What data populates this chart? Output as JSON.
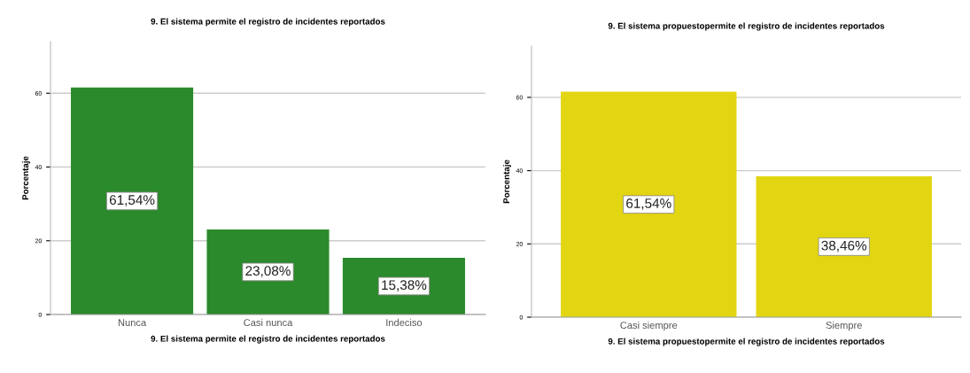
{
  "chart_data": [
    {
      "type": "bar",
      "title": "9. El sistema permite el registro de incidentes reportados",
      "xlabel": "9. El sistema permite el registro de incidentes reportados",
      "ylabel": "Porcentaje",
      "categories": [
        "Nunca",
        "Casi nunca",
        "Indeciso"
      ],
      "values": [
        61.54,
        23.08,
        15.38
      ],
      "value_labels": [
        "61,54%",
        "23,08%",
        "15,38%"
      ],
      "color": "#2b8a2b",
      "ylim": [
        0,
        74
      ],
      "yticks": [
        0,
        20,
        40,
        60
      ],
      "grid": "y"
    },
    {
      "type": "bar",
      "title": "9. El sistema propuestopermite el registro de incidentes reportados",
      "xlabel": "9. El sistema propuestopermite el registro de incidentes reportados",
      "ylabel": "Porcentaje",
      "categories": [
        "Casi siempre",
        "Siempre"
      ],
      "values": [
        61.54,
        38.46
      ],
      "value_labels": [
        "61,54%",
        "38,46%"
      ],
      "color": "#e2d612",
      "ylim": [
        0,
        74
      ],
      "yticks": [
        0,
        20,
        40,
        60
      ],
      "grid": "y"
    }
  ]
}
